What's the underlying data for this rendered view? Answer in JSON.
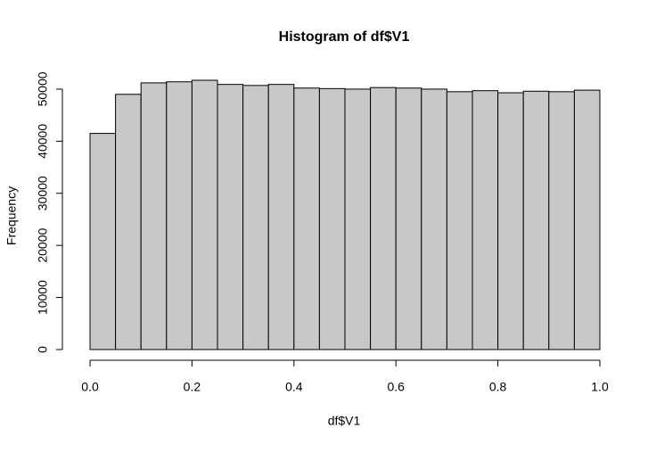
{
  "chart_data": {
    "type": "histogram",
    "title": "Histogram of df$V1",
    "xlabel": "df$V1",
    "ylabel": "Frequency",
    "bins": [
      0,
      0.05,
      0.1,
      0.15,
      0.2,
      0.25,
      0.3,
      0.35,
      0.4,
      0.45,
      0.5,
      0.55,
      0.6,
      0.65,
      0.7,
      0.75,
      0.8,
      0.85,
      0.9,
      0.95,
      1
    ],
    "values": [
      41500,
      49000,
      51200,
      51400,
      51700,
      50900,
      50700,
      50900,
      50200,
      50100,
      50000,
      50300,
      50200,
      50000,
      49500,
      49700,
      49300,
      49600,
      49500,
      49800
    ],
    "color": "#c8c8c8",
    "xlim": [
      0,
      1
    ],
    "xticks": [
      {
        "value": 0,
        "label": "0.0"
      },
      0.2,
      0.4,
      0.6,
      0.8,
      {
        "value": 1,
        "label": "1.0"
      }
    ],
    "ylim": [
      0,
      51700
    ],
    "yticks": [
      0,
      10000,
      20000,
      30000,
      40000,
      50000
    ]
  }
}
